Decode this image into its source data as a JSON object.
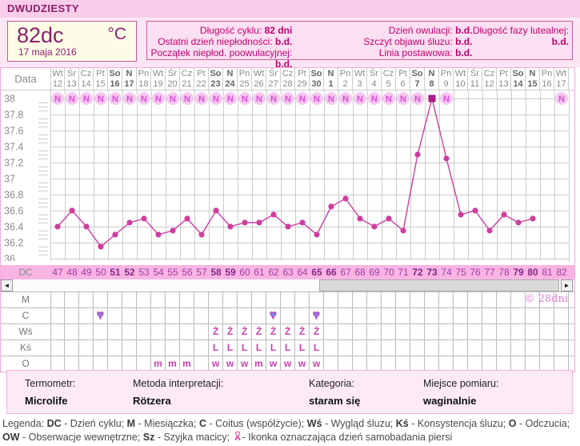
{
  "title": "DWUDZIESTY",
  "temp_box": {
    "value": "82dc",
    "unit": "°C",
    "date": "17 maja 2016"
  },
  "info_box": {
    "columns": [
      [
        {
          "label": "Długość cyklu:",
          "value": "82 dni"
        },
        {
          "label": "Ostatni dzień niepłodności:",
          "value": "b.d."
        },
        {
          "label": "Początek niepłod. poowulacyjnej:",
          "value": "b.d."
        }
      ],
      [
        {
          "label": "Dzień owulacji:",
          "value": "b.d."
        },
        {
          "label": "Szczyt objawu śluzu:",
          "value": "b.d."
        },
        {
          "label": "Linia postawowa:",
          "value": "b.d."
        }
      ],
      [
        {
          "label": "Długość fazy lutealnej:",
          "value": "b.d."
        }
      ]
    ]
  },
  "chart_data": {
    "type": "line",
    "title": "Wykres temperatury cyklu",
    "ylabel": "°C",
    "ylim": [
      36,
      38
    ],
    "y_tick_step": 0.2,
    "y_minor_step": 0.05,
    "grid": true,
    "date_axis_label": "Data",
    "dc_axis_label": "DC",
    "dc_start": 47,
    "columns": [
      {
        "dow": "Wt",
        "day": "12",
        "weekend": false
      },
      {
        "dow": "Śr",
        "day": "13",
        "weekend": false
      },
      {
        "dow": "Cz",
        "day": "14",
        "weekend": false
      },
      {
        "dow": "Pt",
        "day": "15",
        "weekend": false
      },
      {
        "dow": "So",
        "day": "16",
        "weekend": true
      },
      {
        "dow": "N",
        "day": "17",
        "weekend": true
      },
      {
        "dow": "Pn",
        "day": "18",
        "weekend": false
      },
      {
        "dow": "Wt",
        "day": "19",
        "weekend": false
      },
      {
        "dow": "Śr",
        "day": "20",
        "weekend": false
      },
      {
        "dow": "Cz",
        "day": "21",
        "weekend": false
      },
      {
        "dow": "Pt",
        "day": "22",
        "weekend": false
      },
      {
        "dow": "So",
        "day": "23",
        "weekend": true
      },
      {
        "dow": "N",
        "day": "24",
        "weekend": true
      },
      {
        "dow": "Pn",
        "day": "25",
        "weekend": false
      },
      {
        "dow": "Wt",
        "day": "26",
        "weekend": false
      },
      {
        "dow": "Śr",
        "day": "27",
        "weekend": false
      },
      {
        "dow": "Cz",
        "day": "28",
        "weekend": false
      },
      {
        "dow": "Pt",
        "day": "29",
        "weekend": false
      },
      {
        "dow": "So",
        "day": "30",
        "weekend": true
      },
      {
        "dow": "N",
        "day": "1",
        "weekend": true
      },
      {
        "dow": "Pn",
        "day": "2",
        "weekend": false
      },
      {
        "dow": "Wt",
        "day": "3",
        "weekend": false
      },
      {
        "dow": "Śr",
        "day": "4",
        "weekend": false
      },
      {
        "dow": "Cz",
        "day": "5",
        "weekend": false
      },
      {
        "dow": "Pt",
        "day": "6",
        "weekend": false
      },
      {
        "dow": "So",
        "day": "7",
        "weekend": true
      },
      {
        "dow": "N",
        "day": "8",
        "weekend": true
      },
      {
        "dow": "Pn",
        "day": "9",
        "weekend": false
      },
      {
        "dow": "Wt",
        "day": "10",
        "weekend": false
      },
      {
        "dow": "Śr",
        "day": "11",
        "weekend": false
      },
      {
        "dow": "Cz",
        "day": "12",
        "weekend": false
      },
      {
        "dow": "Pt",
        "day": "13",
        "weekend": false
      },
      {
        "dow": "So",
        "day": "14",
        "weekend": true
      },
      {
        "dow": "N",
        "day": "15",
        "weekend": true
      },
      {
        "dow": "Pn",
        "day": "16",
        "weekend": false
      },
      {
        "dow": "Wt",
        "day": "17",
        "weekend": false
      }
    ],
    "temps": [
      36.4,
      36.6,
      36.4,
      36.15,
      36.3,
      36.45,
      36.5,
      36.3,
      36.35,
      36.5,
      36.3,
      36.6,
      36.4,
      36.45,
      36.45,
      36.55,
      36.4,
      36.45,
      36.3,
      36.65,
      36.75,
      36.5,
      36.4,
      36.5,
      36.35,
      37.3,
      38.0,
      37.25,
      36.55,
      36.6,
      36.35,
      36.55,
      36.45,
      36.5,
      null,
      null
    ],
    "n_symbol": "N",
    "disturbed_dc": [
      47,
      48,
      49,
      50,
      51,
      52,
      53,
      54,
      55,
      56,
      57,
      58,
      59,
      60,
      61,
      62,
      63,
      64,
      65,
      66,
      67,
      68,
      69,
      70,
      71,
      72,
      74,
      82
    ],
    "peak_square_dc": 73
  },
  "symbol_section": {
    "copyright": "© 28dni",
    "rows": [
      {
        "label": "M",
        "symbols": {}
      },
      {
        "label": "C",
        "symbols": {
          "50": "heart",
          "62": "heart",
          "65": "heart"
        }
      },
      {
        "label": "Wś",
        "symbols": {
          "58": "Ż",
          "59": "Ż",
          "60": "Ż",
          "61": "Ż",
          "62": "Ż",
          "63": "Ż",
          "64": "Ż",
          "65": "Ż"
        }
      },
      {
        "label": "Kś",
        "symbols": {
          "58": "L",
          "59": "L",
          "60": "L",
          "61": "L",
          "62": "L",
          "63": "L",
          "64": "L",
          "65": "L"
        }
      },
      {
        "label": "O",
        "symbols": {
          "54": "m",
          "55": "m",
          "56": "m",
          "58": "w",
          "59": "w",
          "60": "w",
          "61": "m",
          "62": "w",
          "63": "w",
          "64": "w",
          "65": "w"
        }
      }
    ]
  },
  "scrollbar": {
    "left_arrow": "◄",
    "right_arrow": "►"
  },
  "footer": {
    "fields": [
      {
        "label": "Termometr:",
        "value": "Microlife"
      },
      {
        "label": "Metoda interpretacji:",
        "value": "Rötzera"
      },
      {
        "label": "Kategoria:",
        "value": "staram się"
      },
      {
        "label": "Miejsce pomiaru:",
        "value": "waginalnie"
      }
    ]
  },
  "legend": {
    "lines": [
      [
        {
          "t": "Legenda: "
        },
        {
          "t": "DC",
          "b": true
        },
        {
          "t": " - Dzień cyklu; "
        },
        {
          "t": "M",
          "b": true
        },
        {
          "t": " - Miesiączka; "
        },
        {
          "t": "C",
          "b": true
        },
        {
          "t": " - Coitus (współżycie); "
        },
        {
          "t": "Wś",
          "b": true
        },
        {
          "t": " - Wygląd śluzu; "
        },
        {
          "t": "Kś",
          "b": true
        },
        {
          "t": " - Konsystencja śluzu; "
        },
        {
          "t": "O",
          "b": true
        },
        {
          "t": " - Odczucia;"
        }
      ],
      [
        {
          "t": "OW",
          "b": true
        },
        {
          "t": " - Obserwacje wewnętrzne; "
        },
        {
          "t": "Sz",
          "b": true
        },
        {
          "t": " - Szyjka macicy; "
        },
        {
          "icon": "ribbon-icon"
        },
        {
          "t": "- Ikonka oznaczająca dzień samobadania piersi"
        }
      ]
    ]
  },
  "colors": {
    "accent_line": "#cf3da0",
    "peak_square": "#aa1b8c",
    "n_badge_bg": "#f7c8f2",
    "n_badge_text": "#d94fd4",
    "heart": "#8187f0",
    "dc_row_bg": "#f8b5e4",
    "header_bg": "#f8cde9",
    "info_text": "#c2006e",
    "grid_line": "#cccccc"
  }
}
